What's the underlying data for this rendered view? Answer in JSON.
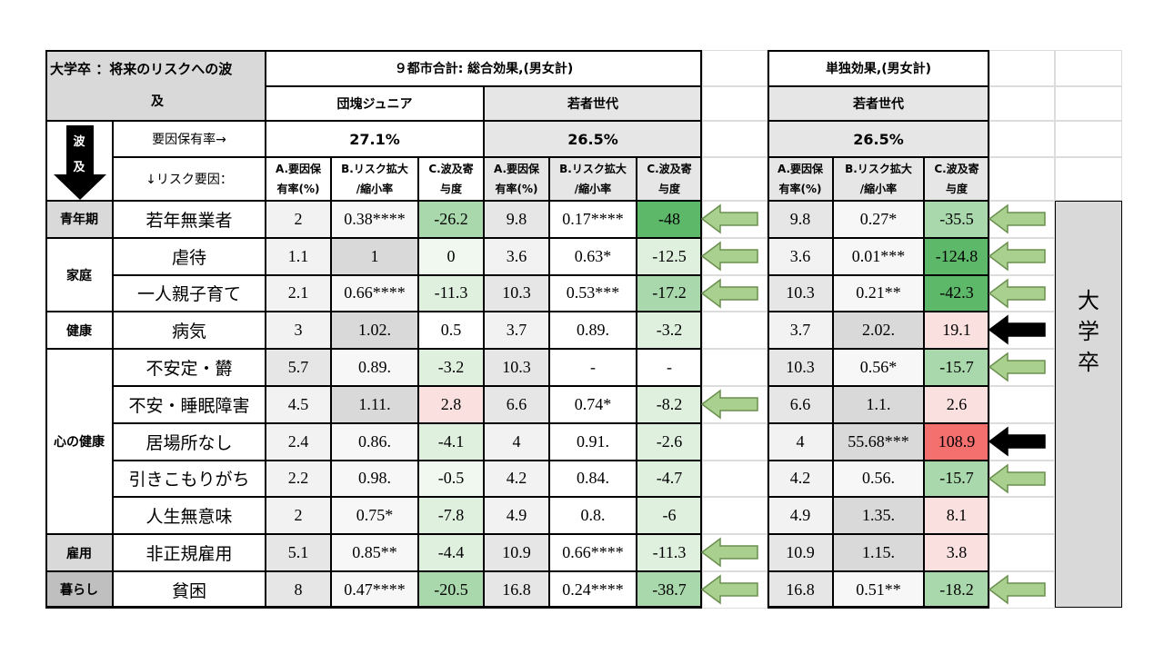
{
  "header": {
    "title_line1": "大学卒 ：将来のリスクへの波",
    "title_line2": "及",
    "combined_title": "９都市合計: 総合効果,(男女計)",
    "single_title": "単独効果,(男女計)",
    "group_junior": "団塊ジュニア",
    "group_young": "若者世代",
    "group_young_single": "若者世代",
    "factor_rate_label": "要因保有率→",
    "risk_factor_label": "↓リスク要因：",
    "wave_label": "波\n及",
    "rate_junior": "27.1%",
    "rate_young": "26.5%",
    "rate_young_single": "26.5%",
    "col_a": "A.要因保\n有率(%)",
    "col_b": "B.リスク拡大\n/縮小率",
    "col_c": "C.波及寄\n与度",
    "side_label": "大\n学\n卒"
  },
  "categories": [
    {
      "label": "青年期",
      "rows": 1
    },
    {
      "label": "家庭",
      "rows": 2
    },
    {
      "label": "健康",
      "rows": 1
    },
    {
      "label": "心の健康",
      "rows": 5
    },
    {
      "label": "雇用",
      "rows": 1
    },
    {
      "label": "暮らし",
      "rows": 1
    }
  ],
  "colors": {
    "green_strong": "#5eb86a",
    "green_mid": "#a9d8ac",
    "green_light": "#dff0df",
    "green_pale": "#f0f8f0",
    "red_strong": "#f4706f",
    "red_light": "#fbe0e0",
    "gray": "#e0e0e0",
    "gray_light": "#efefef",
    "arrow_green": "#a9d08e",
    "arrow_black": "#000000"
  },
  "chart_data": {
    "type": "table",
    "title": "大学卒 ：将来のリスクへの波及",
    "columns": [
      "リスク要因",
      "団塊ジュニア A",
      "団塊ジュニア B",
      "団塊ジュニア C",
      "若者世代 A",
      "若者世代 B",
      "若者世代 C",
      "単独 若者世代 A",
      "単独 若者世代 B",
      "単独 若者世代 C",
      "arrow"
    ],
    "rows": [
      {
        "factor": "若年無業者",
        "ja": "2",
        "jb": "0.38****",
        "jc": "-26.2",
        "ya": "9.8",
        "yb": "0.17****",
        "yc": "-48",
        "sa": "9.8",
        "sb": "0.27*",
        "sc": "-35.5",
        "arrow": "green"
      },
      {
        "factor": "虐待",
        "ja": "1.1",
        "jb": "1",
        "jc": "0",
        "ya": "3.6",
        "yb": "0.63*",
        "yc": "-12.5",
        "sa": "3.6",
        "sb": "0.01***",
        "sc": "-124.8",
        "arrow": "green"
      },
      {
        "factor": "一人親子育て",
        "ja": "2.1",
        "jb": "0.66****",
        "jc": "-11.3",
        "ya": "10.3",
        "yb": "0.53***",
        "yc": "-17.2",
        "sa": "10.3",
        "sb": "0.21**",
        "sc": "-42.3",
        "arrow": "green"
      },
      {
        "factor": "病気",
        "ja": "3",
        "jb": "1.02.",
        "jc": "0.5",
        "ya": "3.7",
        "yb": "0.89.",
        "yc": "-3.2",
        "sa": "3.7",
        "sb": "2.02.",
        "sc": "19.1",
        "arrow": "black"
      },
      {
        "factor": "不安定・欝",
        "ja": "5.7",
        "jb": "0.89.",
        "jc": "-3.2",
        "ya": "10.3",
        "yb": "-",
        "yc": "-",
        "sa": "10.3",
        "sb": "0.56*",
        "sc": "-15.7",
        "arrow": "green"
      },
      {
        "factor": "不安・睡眠障害",
        "ja": "4.5",
        "jb": "1.11.",
        "jc": "2.8",
        "ya": "6.6",
        "yb": "0.74*",
        "yc": "-8.2",
        "sa": "6.6",
        "sb": "1.1.",
        "sc": "2.6",
        "arrow": "none"
      },
      {
        "factor": "居場所なし",
        "ja": "2.4",
        "jb": "0.86.",
        "jc": "-4.1",
        "ya": "4",
        "yb": "0.91.",
        "yc": "-2.6",
        "sa": "4",
        "sb": "55.68***",
        "sc": "108.9",
        "arrow": "black"
      },
      {
        "factor": "引きこもりがち",
        "ja": "2.2",
        "jb": "0.98.",
        "jc": "-0.5",
        "ya": "4.2",
        "yb": "0.84.",
        "yc": "-4.7",
        "sa": "4.2",
        "sb": "0.56.",
        "sc": "-15.7",
        "arrow": "green"
      },
      {
        "factor": "人生無意味",
        "ja": "2",
        "jb": "0.75*",
        "jc": "-7.8",
        "ya": "4.9",
        "yb": "0.8.",
        "yc": "-6",
        "sa": "4.9",
        "sb": "1.35.",
        "sc": "8.1",
        "arrow": "none"
      },
      {
        "factor": "非正規雇用",
        "ja": "5.1",
        "jb": "0.85**",
        "jc": "-4.4",
        "ya": "10.9",
        "yb": "0.66****",
        "yc": "-11.3",
        "sa": "10.9",
        "sb": "1.15.",
        "sc": "3.8",
        "arrow": "none"
      },
      {
        "factor": "貧困",
        "ja": "8",
        "jb": "0.47****",
        "jc": "-20.5",
        "ya": "16.8",
        "yb": "0.24****",
        "yc": "-38.7",
        "sa": "16.8",
        "sb": "0.51**",
        "sc": "-18.2",
        "arrow": "green"
      }
    ],
    "middle_arrows": [
      "green",
      "green",
      "green",
      "none",
      "none",
      "green",
      "none",
      "none",
      "none",
      "green",
      "green"
    ]
  }
}
